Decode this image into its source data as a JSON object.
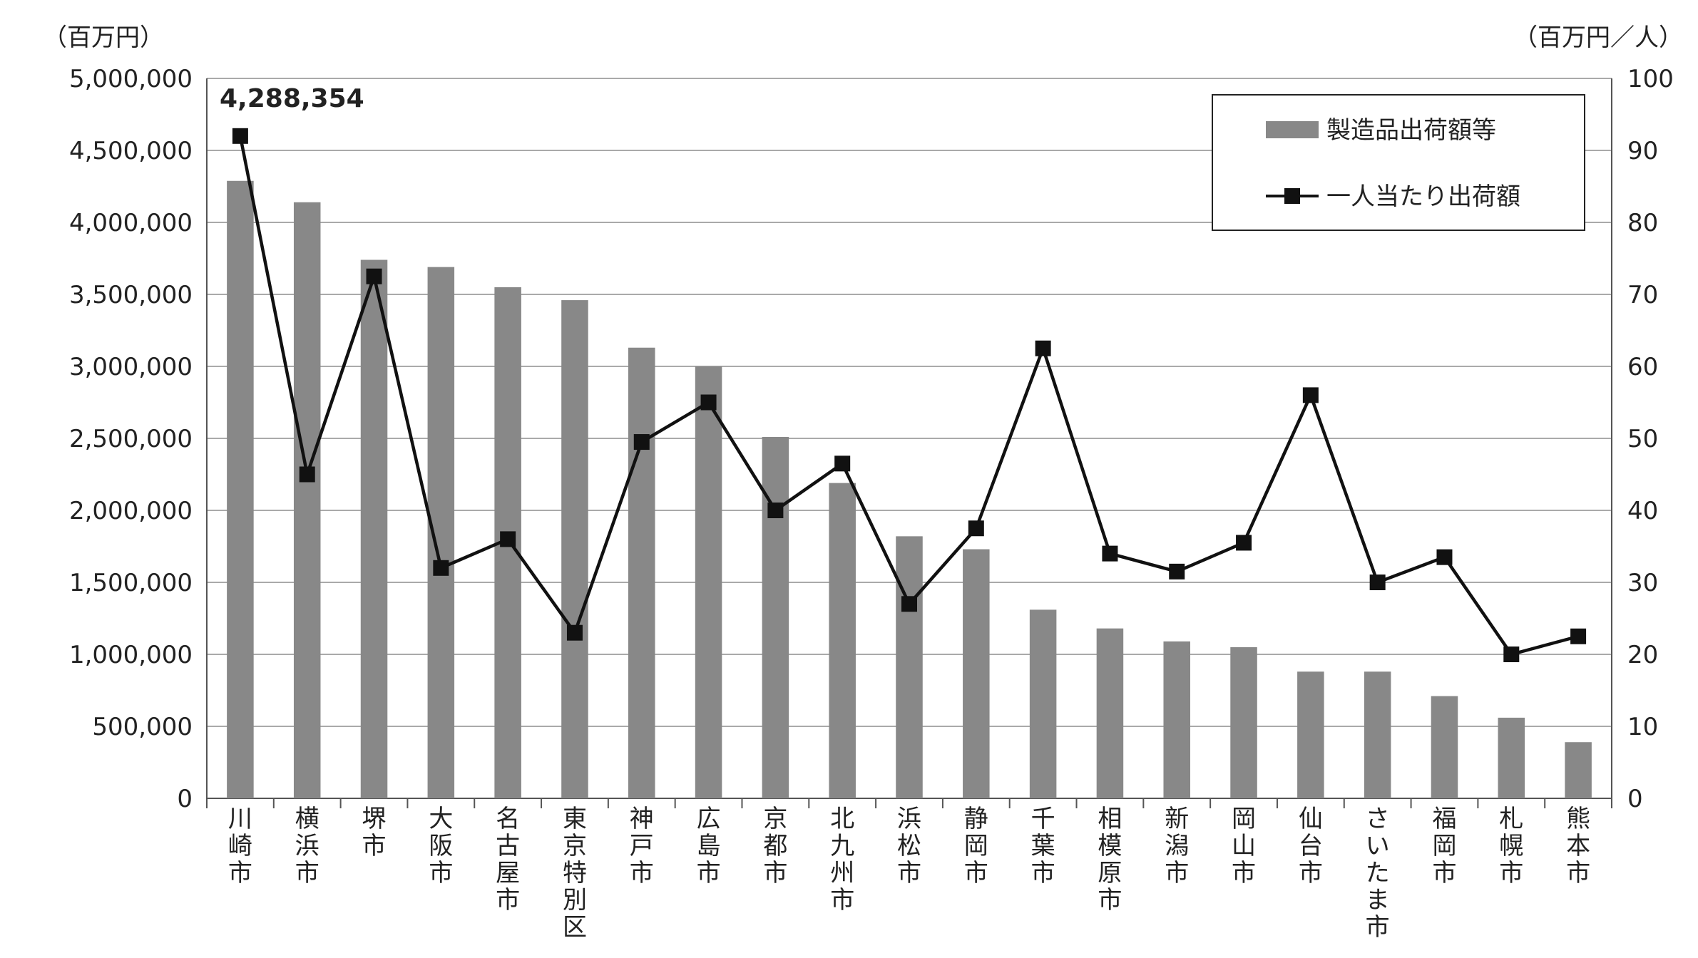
{
  "chart_data": {
    "type": "bar",
    "categories": [
      "川崎市",
      "横浜市",
      "堺市",
      "大阪市",
      "名古屋市",
      "東京特別区",
      "神戸市",
      "広島市",
      "京都市",
      "北九州市",
      "浜松市",
      "静岡市",
      "千葉市",
      "相模原市",
      "新潟市",
      "岡山市",
      "仙台市",
      "さいたま市",
      "福岡市",
      "札幌市",
      "熊本市"
    ],
    "series": [
      {
        "name": "製造品出荷額等",
        "type": "bar",
        "axis": "left",
        "values": [
          4288354,
          4140000,
          3740000,
          3690000,
          3550000,
          3460000,
          3130000,
          3000000,
          2510000,
          2190000,
          1820000,
          1730000,
          1310000,
          1180000,
          1090000,
          1050000,
          880000,
          880000,
          710000,
          560000,
          390000
        ],
        "color": "#888888"
      },
      {
        "name": "一人当たり出荷額",
        "type": "line",
        "axis": "right",
        "values": [
          92,
          45,
          72.5,
          32,
          36,
          23,
          49.5,
          55,
          40,
          46.5,
          27,
          37.5,
          62.5,
          34,
          31.5,
          35.5,
          56,
          30,
          33.5,
          20,
          22.5
        ],
        "color": "#111111"
      }
    ],
    "ylabel_left": "（百万円）",
    "ylabel_right": "（百万円／人）",
    "ylim_left": [
      0,
      5000000
    ],
    "ylim_right": [
      0,
      100
    ],
    "yticks_left": [
      "0",
      "500,000",
      "1,000,000",
      "1,500,000",
      "2,000,000",
      "2,500,000",
      "3,000,000",
      "3,500,000",
      "4,000,000",
      "4,500,000",
      "5,000,000"
    ],
    "yticks_right": [
      "0",
      "10",
      "20",
      "30",
      "40",
      "50",
      "60",
      "70",
      "80",
      "90",
      "100"
    ],
    "annotation": "4,288,354",
    "grid": true,
    "legend_position": "top-right"
  }
}
